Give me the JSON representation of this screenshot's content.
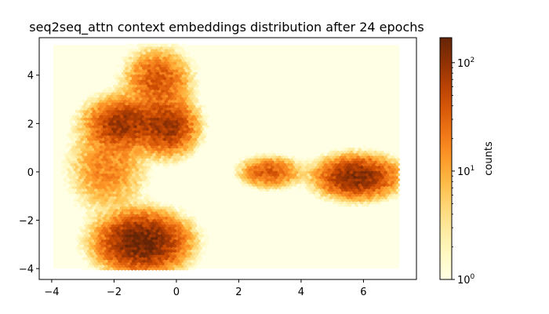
{
  "chart_data": {
    "type": "heatmap",
    "subtype": "hexbin",
    "title": "seq2seq_attn context embeddings distribution after 24 epochs",
    "xlabel": "",
    "ylabel": "",
    "xlim": [
      -4.4,
      7.7
    ],
    "ylim": [
      -4.45,
      5.55
    ],
    "x_ticks": [
      -4,
      -2,
      0,
      2,
      4,
      6
    ],
    "y_ticks": [
      -4,
      -2,
      0,
      2,
      4
    ],
    "x_tick_labels": [
      "−4",
      "−2",
      "0",
      "2",
      "4",
      "6"
    ],
    "y_tick_labels": [
      "−4",
      "−2",
      "0",
      "2",
      "4"
    ],
    "extent": {
      "x": [
        -3.95,
        7.15
      ],
      "y": [
        -4.0,
        5.25
      ]
    },
    "colormap": "YlOrBr",
    "colormap_stops": [
      "#ffffe5",
      "#fff7bc",
      "#fee391",
      "#fec44f",
      "#fe9929",
      "#ec7014",
      "#cc4c02",
      "#993404",
      "#662506"
    ],
    "background_color": "#ffffe5",
    "colorbar": {
      "label": "counts",
      "scale": "log",
      "min": 1,
      "max": 170,
      "ticks": [
        1,
        10,
        100
      ],
      "tick_bases": [
        "10",
        "10",
        "10"
      ],
      "tick_exponents": [
        "0",
        "1",
        "2"
      ]
    },
    "clusters": [
      {
        "name": "upper-left",
        "center": [
          -1.7,
          2.0
        ],
        "peak_count": 90,
        "spread": [
          0.55,
          0.5
        ]
      },
      {
        "name": "upper-middle",
        "center": [
          -0.3,
          1.9
        ],
        "peak_count": 90,
        "spread": [
          0.45,
          0.55
        ]
      },
      {
        "name": "top",
        "center": [
          -0.6,
          3.8
        ],
        "peak_count": 40,
        "spread": [
          0.5,
          0.6
        ]
      },
      {
        "name": "lower",
        "center": [
          -1.1,
          -2.9
        ],
        "peak_count": 170,
        "spread": [
          0.65,
          0.55
        ]
      },
      {
        "name": "left-middle",
        "center": [
          -2.2,
          0.2
        ],
        "peak_count": 18,
        "spread": [
          0.6,
          0.9
        ]
      },
      {
        "name": "right-middle",
        "center": [
          3.0,
          0.0
        ],
        "peak_count": 40,
        "spread": [
          0.45,
          0.3
        ]
      },
      {
        "name": "right",
        "center": [
          5.8,
          -0.2
        ],
        "peak_count": 120,
        "spread": [
          0.6,
          0.4
        ]
      }
    ]
  }
}
